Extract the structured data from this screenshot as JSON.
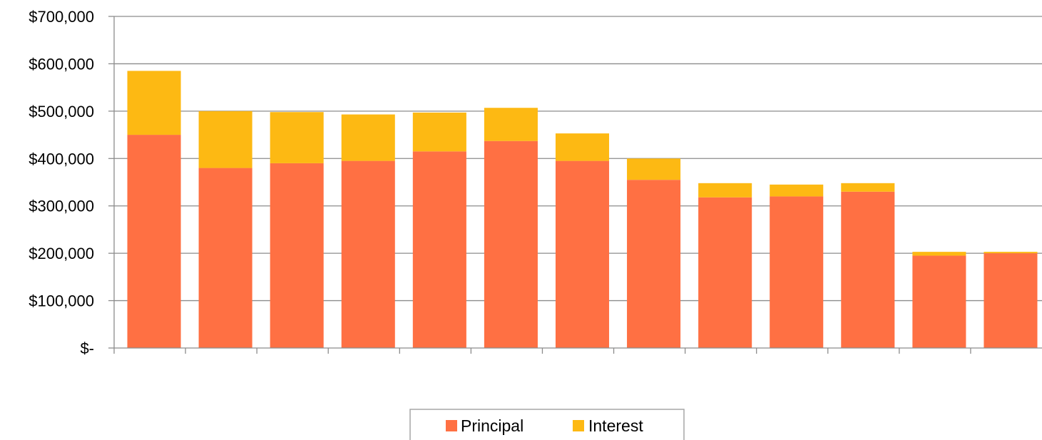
{
  "chart_data": {
    "type": "bar",
    "stacked": true,
    "title": "",
    "xlabel": "",
    "ylabel": "",
    "ylim": [
      0,
      700000
    ],
    "y_ticks": [
      0,
      100000,
      200000,
      300000,
      400000,
      500000,
      600000,
      700000
    ],
    "y_tick_labels": [
      "$-",
      "$100,000",
      "$200,000",
      "$300,000",
      "$400,000",
      "$500,000",
      "$600,000",
      "$700,000"
    ],
    "categories": [
      "",
      "",
      "",
      "",
      "",
      "",
      "",
      "",
      "",
      "",
      "",
      "",
      ""
    ],
    "series": [
      {
        "name": "Principal",
        "color": "#FF7043",
        "values": [
          450000,
          380000,
          390000,
          395000,
          415000,
          437000,
          395000,
          355000,
          318000,
          320000,
          330000,
          195000,
          200000
        ]
      },
      {
        "name": "Interest",
        "color": "#FDB913",
        "values": [
          135000,
          120000,
          108000,
          98000,
          82000,
          70000,
          58000,
          45000,
          30000,
          25000,
          18000,
          8000,
          3000
        ]
      }
    ],
    "grid": true,
    "legend_position": "bottom-center"
  }
}
